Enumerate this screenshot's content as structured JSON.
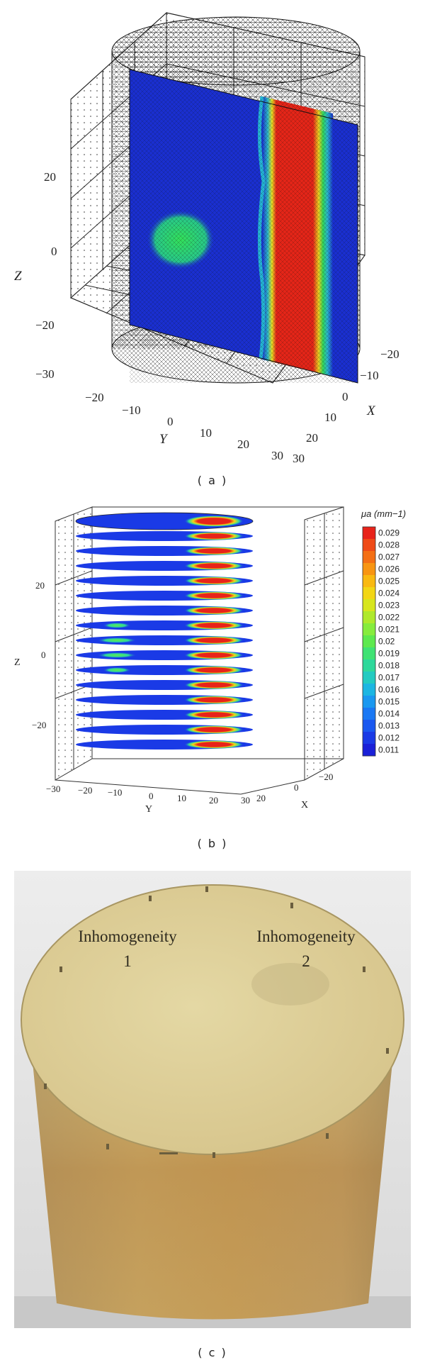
{
  "figure": {
    "panels": [
      {
        "caption": "( a )",
        "axes": {
          "z_label": "Z",
          "y_label": "Y",
          "x_label": "X",
          "z_ticks": [
            "20",
            "0",
            "−20",
            "−30"
          ],
          "y_ticks": [
            "−20",
            "−10",
            "0",
            "10",
            "20",
            "30"
          ],
          "x_ticks": [
            "−20",
            "−10",
            "0",
            "10",
            "20",
            "30"
          ]
        },
        "colors": {
          "background_slice": "#1a2fd0",
          "inhomogeneity_1": "#2fd65a",
          "inhomogeneity_2": "#e42518",
          "mesh": "#111111"
        }
      },
      {
        "caption": "( b )",
        "axes": {
          "z_label": "Z",
          "y_label": "Y",
          "x_label": "X",
          "z_ticks": [
            "20",
            "0",
            "−20"
          ],
          "y_ticks": [
            "−30",
            "−20",
            "−10",
            "0",
            "10",
            "20",
            "30"
          ],
          "x_ticks": [
            "20",
            "0",
            "−20"
          ]
        },
        "colorbar": {
          "title": "μa (mm−1)",
          "ticks": [
            "0.029",
            "0.028",
            "0.027",
            "0.026",
            "0.025",
            "0.024",
            "0.023",
            "0.022",
            "0.021",
            "0.02",
            "0.019",
            "0.018",
            "0.017",
            "0.016",
            "0.015",
            "0.014",
            "0.013",
            "0.012",
            "0.011"
          ],
          "colors": [
            "#e8231a",
            "#ef4a17",
            "#f46f14",
            "#f89512",
            "#f9b911",
            "#f2d615",
            "#d7e61e",
            "#afe92c",
            "#86ec3d",
            "#5de94e",
            "#3fe273",
            "#2ed89b",
            "#23cbc1",
            "#1cb6e2",
            "#1a98f0",
            "#1a78f4",
            "#1a58f0",
            "#1a3ae6",
            "#1a20d8"
          ]
        }
      },
      {
        "caption": "( c )",
        "labels": [
          {
            "line1": "Inhomogeneity",
            "line2": "1"
          },
          {
            "line1": "Inhomogeneity",
            "line2": "2"
          }
        ]
      }
    ]
  }
}
